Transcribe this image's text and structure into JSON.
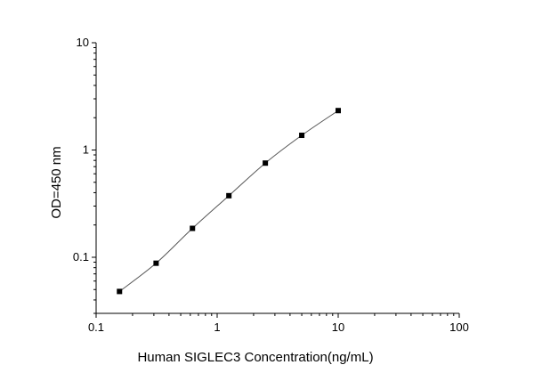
{
  "chart_data": {
    "type": "scatter",
    "title": "",
    "xlabel": "Human SIGLEC3 Concentration(ng/mL)",
    "ylabel": "OD=450 nm",
    "xscale": "log",
    "yscale": "log",
    "xlim": [
      0.1,
      100
    ],
    "ylim": [
      0.03,
      10
    ],
    "x_ticks": [
      0.1,
      1,
      10,
      100
    ],
    "x_tick_labels": [
      "0.1",
      "1",
      "10",
      "100"
    ],
    "y_ticks": [
      0.1,
      1,
      10
    ],
    "y_tick_labels": [
      "0.1",
      "1",
      "10"
    ],
    "grid": false,
    "legend": "none",
    "series": [
      {
        "x": [
          0.156,
          0.313,
          0.625,
          1.25,
          2.5,
          5,
          10
        ],
        "y": [
          0.048,
          0.088,
          0.186,
          0.375,
          0.755,
          1.37,
          2.33
        ],
        "marker": "square",
        "line": "smooth",
        "marker_color": "#000000",
        "line_color": "#555555"
      }
    ]
  }
}
